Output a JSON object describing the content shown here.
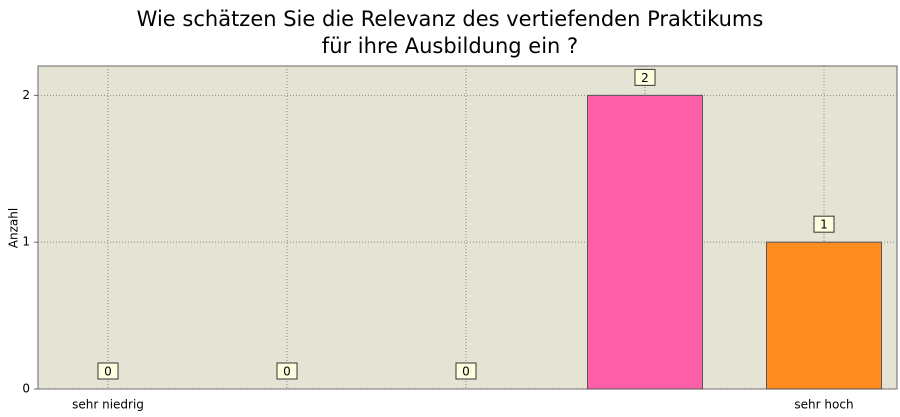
{
  "chart_data": {
    "type": "bar",
    "title": [
      "Wie schätzen Sie die Relevanz des vertiefenden Praktikums",
      "für ihre Ausbildung ein ?"
    ],
    "y_label": "Anzahl",
    "categories": [
      "sehr niedrig",
      null,
      null,
      null,
      "sehr hoch"
    ],
    "values": [
      0,
      0,
      0,
      2,
      1
    ],
    "colors": [
      null,
      null,
      null,
      "#ff5fa7",
      "#ff8c1f"
    ],
    "ylim": [
      0,
      2.2
    ],
    "yticks": [
      0,
      1,
      2
    ],
    "grid": true
  }
}
